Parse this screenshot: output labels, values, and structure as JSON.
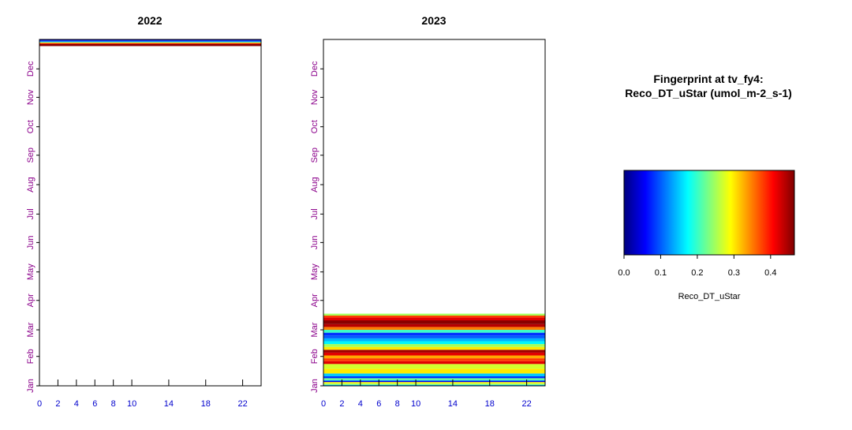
{
  "legend": {
    "title_line1": "Fingerprint at tv_fy4:",
    "title_line2": "Reco_DT_uStar (umol_m-2_s-1)",
    "variable_label": "Reco_DT_uStar",
    "colorbar_stops": [
      "#00007F",
      "#0000FF",
      "#007FFF",
      "#00FFFF",
      "#7FFF7F",
      "#FFFF00",
      "#FF7F00",
      "#FF0000",
      "#7F0000"
    ],
    "range": [
      0,
      0.465
    ],
    "ticks": [
      "0.0",
      "0.1",
      "0.2",
      "0.3",
      "0.4"
    ],
    "tick_values": [
      0,
      0.1,
      0.2,
      0.3,
      0.4
    ]
  },
  "chart_data": [
    {
      "type": "heatmap",
      "title": "2022",
      "x_ticks": [
        "0",
        "2",
        "4",
        "6",
        "8",
        "10",
        "14",
        "18",
        "22"
      ],
      "x_tick_values": [
        0,
        2,
        4,
        6,
        8,
        10,
        14,
        18,
        22
      ],
      "xlim": [
        0,
        24
      ],
      "y_ticks": [
        "Jan",
        "Feb",
        "Mar",
        "Apr",
        "May",
        "Jun",
        "Jul",
        "Aug",
        "Sep",
        "Oct",
        "Nov",
        "Dec"
      ],
      "y_tick_values": [
        1,
        32,
        60,
        91,
        121,
        152,
        182,
        213,
        244,
        274,
        305,
        335
      ],
      "ylim": [
        1,
        366
      ],
      "bands": [
        {
          "day_start": 359,
          "day_end": 361,
          "value": 0.46
        },
        {
          "day_start": 361,
          "day_end": 362,
          "value": 0.42
        },
        {
          "day_start": 362,
          "day_end": 363,
          "value": 0.3
        },
        {
          "day_start": 363,
          "day_end": 364,
          "value": 0.14
        },
        {
          "day_start": 364,
          "day_end": 365,
          "value": 0.08
        },
        {
          "day_start": 365,
          "day_end": 366,
          "value": 0.03
        }
      ]
    },
    {
      "type": "heatmap",
      "title": "2023",
      "x_ticks": [
        "0",
        "2",
        "4",
        "6",
        "8",
        "10",
        "14",
        "18",
        "22"
      ],
      "x_tick_values": [
        0,
        2,
        4,
        6,
        8,
        10,
        14,
        18,
        22
      ],
      "xlim": [
        0,
        24
      ],
      "y_ticks": [
        "Jan",
        "Feb",
        "Mar",
        "Apr",
        "May",
        "Jun",
        "Jul",
        "Aug",
        "Sep",
        "Oct",
        "Nov",
        "Dec"
      ],
      "y_tick_values": [
        1,
        32,
        60,
        91,
        121,
        152,
        182,
        213,
        244,
        274,
        305,
        335
      ],
      "ylim": [
        1,
        366
      ],
      "bands": [
        {
          "day_start": 1,
          "day_end": 2,
          "value": 0.15
        },
        {
          "day_start": 2,
          "day_end": 3,
          "value": 0.22
        },
        {
          "day_start": 3,
          "day_end": 4,
          "value": 0.28
        },
        {
          "day_start": 4,
          "day_end": 5,
          "value": 0.3
        },
        {
          "day_start": 5,
          "day_end": 6,
          "value": 0.05
        },
        {
          "day_start": 6,
          "day_end": 7,
          "value": 0.12
        },
        {
          "day_start": 7,
          "day_end": 9,
          "value": 0.22
        },
        {
          "day_start": 9,
          "day_end": 11,
          "value": 0.08
        },
        {
          "day_start": 11,
          "day_end": 14,
          "value": 0.15
        },
        {
          "day_start": 14,
          "day_end": 19,
          "value": 0.3
        },
        {
          "day_start": 19,
          "day_end": 24,
          "value": 0.27
        },
        {
          "day_start": 24,
          "day_end": 27,
          "value": 0.42
        },
        {
          "day_start": 27,
          "day_end": 30,
          "value": 0.38
        },
        {
          "day_start": 30,
          "day_end": 33,
          "value": 0.33
        },
        {
          "day_start": 33,
          "day_end": 36,
          "value": 0.42
        },
        {
          "day_start": 36,
          "day_end": 39,
          "value": 0.45
        },
        {
          "day_start": 39,
          "day_end": 42,
          "value": 0.3
        },
        {
          "day_start": 42,
          "day_end": 45,
          "value": 0.25
        },
        {
          "day_start": 45,
          "day_end": 48,
          "value": 0.17
        },
        {
          "day_start": 48,
          "day_end": 51,
          "value": 0.14
        },
        {
          "day_start": 51,
          "day_end": 54,
          "value": 0.1
        },
        {
          "day_start": 54,
          "day_end": 57,
          "value": 0.08
        },
        {
          "day_start": 57,
          "day_end": 60,
          "value": 0.2
        },
        {
          "day_start": 60,
          "day_end": 63,
          "value": 0.35
        },
        {
          "day_start": 63,
          "day_end": 66,
          "value": 0.44
        },
        {
          "day_start": 66,
          "day_end": 70,
          "value": 0.46
        },
        {
          "day_start": 70,
          "day_end": 73,
          "value": 0.42
        },
        {
          "day_start": 73,
          "day_end": 75,
          "value": 0.38
        },
        {
          "day_start": 75,
          "day_end": 77,
          "value": 0.25
        }
      ]
    }
  ]
}
